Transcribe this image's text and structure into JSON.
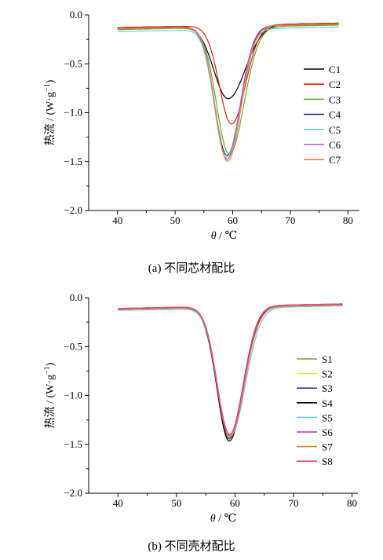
{
  "chart_data": [
    {
      "type": "line",
      "caption": "(a)  不同芯材配比",
      "xlabel_var": "θ",
      "xlabel_unit": " / ℃",
      "ylabel": "热流 / (W·g",
      "ylabel_sup": "−1",
      "ylabel_close": ")",
      "xlim": [
        35,
        82
      ],
      "ylim": [
        -2.0,
        0.0
      ],
      "xticks": [
        40,
        50,
        60,
        70,
        80
      ],
      "yticks": [
        0.0,
        -0.5,
        -1.0,
        -1.5,
        -2.0
      ],
      "ytick_labels": [
        "0.0",
        "−0.5",
        "−1.0",
        "−1.5",
        "−2.0"
      ],
      "legend_position": "right",
      "series": [
        {
          "name": "C1",
          "color": "#000000",
          "base": -0.13,
          "min": -0.88,
          "center": 59.2,
          "wl": 3.5,
          "wr": 4.2
        },
        {
          "name": "C2",
          "color": "#e8200a",
          "base": -0.13,
          "min": -1.14,
          "center": 59.8,
          "wl": 3.0,
          "wr": 3.4
        },
        {
          "name": "C3",
          "color": "#6aaa2a",
          "base": -0.15,
          "min": -1.45,
          "center": 59.4,
          "wl": 3.1,
          "wr": 3.6
        },
        {
          "name": "C4",
          "color": "#1a2a8a",
          "base": -0.14,
          "min": -1.46,
          "center": 59.0,
          "wl": 3.0,
          "wr": 3.3
        },
        {
          "name": "C5",
          "color": "#66ccee",
          "base": -0.17,
          "min": -1.48,
          "center": 58.9,
          "wl": 2.9,
          "wr": 3.3
        },
        {
          "name": "C6",
          "color": "#aa55cc",
          "base": -0.14,
          "min": -1.5,
          "center": 59.0,
          "wl": 2.9,
          "wr": 3.2
        },
        {
          "name": "C7",
          "color": "#f08030",
          "base": -0.14,
          "min": -1.52,
          "center": 59.1,
          "wl": 3.0,
          "wr": 3.3
        }
      ]
    },
    {
      "type": "line",
      "caption": "(b)  不同壳材配比",
      "xlabel_var": "θ",
      "xlabel_unit": " / ℃",
      "ylabel": "热流 / (W·g",
      "ylabel_sup": "−1",
      "ylabel_close": ")",
      "xlim": [
        35,
        81
      ],
      "ylim": [
        -2.0,
        0.0
      ],
      "xticks": [
        40,
        50,
        60,
        70,
        80
      ],
      "yticks": [
        0.0,
        -0.5,
        -1.0,
        -1.5,
        -2.0
      ],
      "ytick_labels": [
        "0.0",
        "−0.5",
        "−1.0",
        "−1.5",
        "−2.0"
      ],
      "legend_position": "right",
      "series": [
        {
          "name": "S1",
          "color": "#6aaa2a",
          "base": -0.12,
          "min": -1.47,
          "center": 59.0,
          "wl": 3.0,
          "wr": 3.5
        },
        {
          "name": "S2",
          "color": "#e8e23a",
          "base": -0.12,
          "min": -1.45,
          "center": 59.0,
          "wl": 3.0,
          "wr": 3.5
        },
        {
          "name": "S3",
          "color": "#3a3aaa",
          "base": -0.12,
          "min": -1.46,
          "center": 59.0,
          "wl": 3.0,
          "wr": 3.5
        },
        {
          "name": "S4",
          "color": "#000000",
          "base": -0.12,
          "min": -1.49,
          "center": 59.0,
          "wl": 2.9,
          "wr": 3.5
        },
        {
          "name": "S5",
          "color": "#66ccee",
          "base": -0.13,
          "min": -1.44,
          "center": 59.2,
          "wl": 3.1,
          "wr": 3.6
        },
        {
          "name": "S6",
          "color": "#aa33aa",
          "base": -0.11,
          "min": -1.43,
          "center": 59.0,
          "wl": 3.0,
          "wr": 3.4
        },
        {
          "name": "S7",
          "color": "#f08030",
          "base": -0.12,
          "min": -1.44,
          "center": 59.1,
          "wl": 3.0,
          "wr": 3.5
        },
        {
          "name": "S8",
          "color": "#ee4477",
          "base": -0.11,
          "min": -1.42,
          "center": 59.1,
          "wl": 3.0,
          "wr": 3.4
        }
      ]
    }
  ]
}
